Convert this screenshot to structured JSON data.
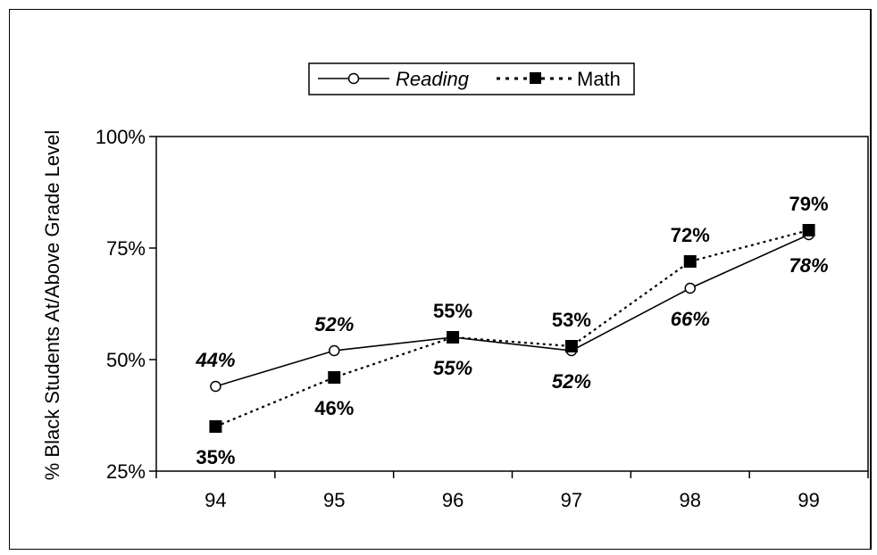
{
  "chart_data": {
    "type": "line",
    "title": "",
    "xlabel": "",
    "ylabel": "% Black Students At/Above Grade Level",
    "categories": [
      "94",
      "95",
      "96",
      "97",
      "98",
      "99"
    ],
    "ylim": [
      25,
      100
    ],
    "yticks": [
      25,
      50,
      75,
      100
    ],
    "ytick_labels": [
      "25%",
      "50%",
      "75%",
      "100%"
    ],
    "grid": false,
    "legend_position": "top-center",
    "series": [
      {
        "name": "Reading",
        "values": [
          44,
          52,
          55,
          52,
          66,
          78
        ],
        "labels": [
          "44%",
          "52%",
          "55%",
          "52%",
          "66%",
          "78%"
        ],
        "marker": "open-circle",
        "line_style": "solid",
        "label_style": "bold-italic"
      },
      {
        "name": "Math",
        "values": [
          35,
          46,
          55,
          53,
          72,
          79
        ],
        "labels": [
          "35%",
          "46%",
          "55%",
          "53%",
          "72%",
          "79%"
        ],
        "marker": "filled-square",
        "line_style": "dotted",
        "label_style": "bold"
      }
    ]
  }
}
